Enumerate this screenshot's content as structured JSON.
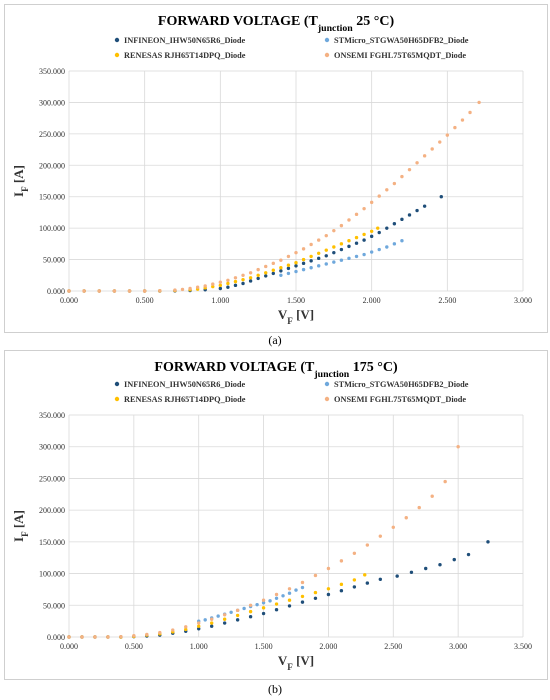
{
  "captions": [
    "(a)",
    "(b)"
  ],
  "legend_colors": {
    "INFINEON": "#1f4e79",
    "STMicro": "#6fa8dc",
    "RENESAS": "#ffc000",
    "ONSEMI": "#f4b183"
  },
  "chart_data": [
    {
      "type": "scatter",
      "title_parts": [
        "FORWARD VOLTAGE (T",
        "junction",
        " 25 °C)"
      ],
      "xlabel_parts": [
        "V",
        "F",
        " [V]"
      ],
      "ylabel_parts": [
        "I",
        "F",
        " [A]"
      ],
      "xlim": [
        0,
        3
      ],
      "ylim": [
        0,
        350
      ],
      "xticks": [
        "0.000",
        "0.500",
        "1.000",
        "1.500",
        "2.000",
        "2.500",
        "3.000"
      ],
      "yticks": [
        "0.000",
        "50.000",
        "100.000",
        "150.000",
        "200.000",
        "250.000",
        "300.000",
        "350.000"
      ],
      "legend_position": "top",
      "grid": true,
      "series": [
        {
          "name": "INFINEON_IHW50N65R6_Diode",
          "color": "#1f4e79",
          "x": [
            0.0,
            0.1,
            0.2,
            0.3,
            0.4,
            0.5,
            0.6,
            0.7,
            0.8,
            0.9,
            1.0,
            1.05,
            1.1,
            1.15,
            1.2,
            1.25,
            1.3,
            1.35,
            1.4,
            1.45,
            1.5,
            1.55,
            1.6,
            1.65,
            1.7,
            1.75,
            1.8,
            1.85,
            1.9,
            1.95,
            2.0,
            2.05,
            2.1,
            2.15,
            2.2,
            2.25,
            2.3,
            2.35,
            2.46
          ],
          "y": [
            0,
            0,
            0,
            0,
            0,
            0,
            0,
            0.2,
            0.8,
            2,
            4,
            6,
            9,
            12,
            16,
            20,
            24,
            28,
            32,
            36,
            40,
            44,
            48,
            52,
            56,
            61,
            66,
            71,
            76,
            81,
            87,
            93,
            100,
            107,
            114,
            121,
            128,
            135,
            150
          ]
        },
        {
          "name": "STMicro_STGWA50H65DFB2_Diode",
          "color": "#6fa8dc",
          "x": [
            1.4,
            1.45,
            1.5,
            1.55,
            1.6,
            1.65,
            1.7,
            1.75,
            1.8,
            1.85,
            1.9,
            1.95,
            2.0,
            2.05,
            2.1,
            2.15,
            2.2
          ],
          "y": [
            25,
            28,
            31,
            34,
            37,
            40,
            43,
            46,
            49,
            52,
            55,
            58,
            62,
            66,
            70,
            75,
            80
          ]
        },
        {
          "name": "RENESAS RJH65T14DPQ_Diode",
          "color": "#ffc000",
          "x": [
            0.0,
            0.1,
            0.2,
            0.3,
            0.4,
            0.5,
            0.6,
            0.7,
            0.8,
            0.85,
            0.9,
            0.95,
            1.0,
            1.05,
            1.1,
            1.15,
            1.2,
            1.25,
            1.3,
            1.35,
            1.4,
            1.45,
            1.5,
            1.55,
            1.6,
            1.65,
            1.7,
            1.75,
            1.8,
            1.85,
            1.9,
            1.95,
            2.0,
            2.04
          ],
          "y": [
            0,
            0,
            0,
            0,
            0,
            0,
            0.2,
            0.8,
            2,
            3,
            5,
            7,
            9,
            12,
            15,
            18,
            21,
            25,
            29,
            33,
            37,
            41,
            45,
            50,
            55,
            60,
            65,
            70,
            75,
            80,
            85,
            90,
            95,
            100
          ]
        },
        {
          "name": "ONSEMI FGHL75T65MQDT_Diode",
          "color": "#f4b183",
          "x": [
            0.0,
            0.1,
            0.2,
            0.3,
            0.4,
            0.5,
            0.6,
            0.7,
            0.75,
            0.8,
            0.85,
            0.9,
            0.95,
            1.0,
            1.05,
            1.1,
            1.15,
            1.2,
            1.25,
            1.3,
            1.35,
            1.4,
            1.45,
            1.5,
            1.55,
            1.6,
            1.65,
            1.7,
            1.75,
            1.8,
            1.85,
            1.9,
            1.95,
            2.0,
            2.05,
            2.1,
            2.15,
            2.2,
            2.25,
            2.3,
            2.35,
            2.4,
            2.45,
            2.5,
            2.55,
            2.6,
            2.65,
            2.71
          ],
          "y": [
            0,
            0,
            0,
            0,
            0,
            0,
            0.5,
            1.5,
            2.5,
            4,
            6,
            8,
            11,
            14,
            17,
            21,
            25,
            29,
            34,
            39,
            44,
            49,
            55,
            61,
            67,
            74,
            81,
            88,
            96,
            104,
            113,
            122,
            131,
            141,
            151,
            161,
            171,
            182,
            193,
            204,
            215,
            226,
            237,
            248,
            260,
            272,
            284,
            300
          ]
        }
      ]
    },
    {
      "type": "scatter",
      "title_parts": [
        "FORWARD VOLTAGE (T",
        "junction",
        " 175 °C)"
      ],
      "xlabel_parts": [
        "V",
        "F",
        " [V]"
      ],
      "ylabel_parts": [
        "I",
        "F",
        " [A]"
      ],
      "xlim": [
        0,
        3.5
      ],
      "ylim": [
        0,
        350
      ],
      "xticks": [
        "0.000",
        "0.500",
        "1.000",
        "1.500",
        "2.000",
        "2.500",
        "3.000",
        "3.500"
      ],
      "yticks": [
        "0.000",
        "50.000",
        "100.000",
        "150.000",
        "200.000",
        "250.000",
        "300.000",
        "350.000"
      ],
      "legend_position": "top",
      "grid": true,
      "series": [
        {
          "name": "INFINEON_IHW50N65R6_Diode",
          "color": "#1f4e79",
          "x": [
            0.0,
            0.1,
            0.2,
            0.3,
            0.4,
            0.5,
            0.6,
            0.7,
            0.8,
            0.9,
            1.0,
            1.1,
            1.2,
            1.3,
            1.4,
            1.5,
            1.6,
            1.7,
            1.8,
            1.9,
            2.0,
            2.1,
            2.2,
            2.3,
            2.4,
            2.53,
            2.64,
            2.75,
            2.86,
            2.97,
            3.08,
            3.23
          ],
          "y": [
            0,
            0,
            0,
            0,
            0,
            0.5,
            1.5,
            3,
            6,
            9,
            13,
            17,
            22,
            27,
            32,
            37,
            43,
            49,
            55,
            61,
            67,
            73,
            79,
            85,
            91,
            96,
            102,
            108,
            114,
            122,
            130,
            150
          ]
        },
        {
          "name": "STMicro_STGWA50H65DFB2_Diode",
          "color": "#6fa8dc",
          "x": [
            1.0,
            1.05,
            1.1,
            1.15,
            1.2,
            1.25,
            1.3,
            1.35,
            1.4,
            1.45,
            1.5,
            1.55,
            1.6,
            1.65,
            1.7,
            1.75,
            1.8
          ],
          "y": [
            25,
            27,
            30,
            33,
            36,
            39,
            42,
            45,
            48,
            51,
            54,
            57,
            61,
            65,
            69,
            74,
            78
          ]
        },
        {
          "name": "RENESAS RJH65T14DPQ_Diode",
          "color": "#ffc000",
          "x": [
            0.0,
            0.1,
            0.2,
            0.3,
            0.4,
            0.5,
            0.6,
            0.7,
            0.8,
            0.9,
            1.0,
            1.1,
            1.2,
            1.3,
            1.4,
            1.5,
            1.6,
            1.7,
            1.8,
            1.9,
            2.0,
            2.1,
            2.2,
            2.28
          ],
          "y": [
            0,
            0,
            0,
            0,
            0,
            1,
            3,
            5,
            8,
            12,
            17,
            22,
            28,
            34,
            40,
            46,
            52,
            58,
            64,
            70,
            76,
            83,
            90,
            98
          ]
        },
        {
          "name": "ONSEMI FGHL75T65MQDT_Diode",
          "color": "#f4b183",
          "x": [
            0.0,
            0.1,
            0.2,
            0.3,
            0.4,
            0.5,
            0.6,
            0.7,
            0.8,
            0.9,
            1.0,
            1.1,
            1.2,
            1.3,
            1.4,
            1.5,
            1.6,
            1.7,
            1.8,
            1.9,
            2.0,
            2.1,
            2.2,
            2.3,
            2.4,
            2.5,
            2.6,
            2.7,
            2.8,
            2.9,
            3.0
          ],
          "y": [
            0,
            0,
            0,
            0,
            0.5,
            2,
            4,
            7,
            11,
            16,
            22,
            28,
            35,
            42,
            50,
            58,
            67,
            76,
            86,
            97,
            108,
            120,
            132,
            145,
            159,
            173,
            188,
            204,
            222,
            245,
            300
          ]
        }
      ]
    }
  ]
}
